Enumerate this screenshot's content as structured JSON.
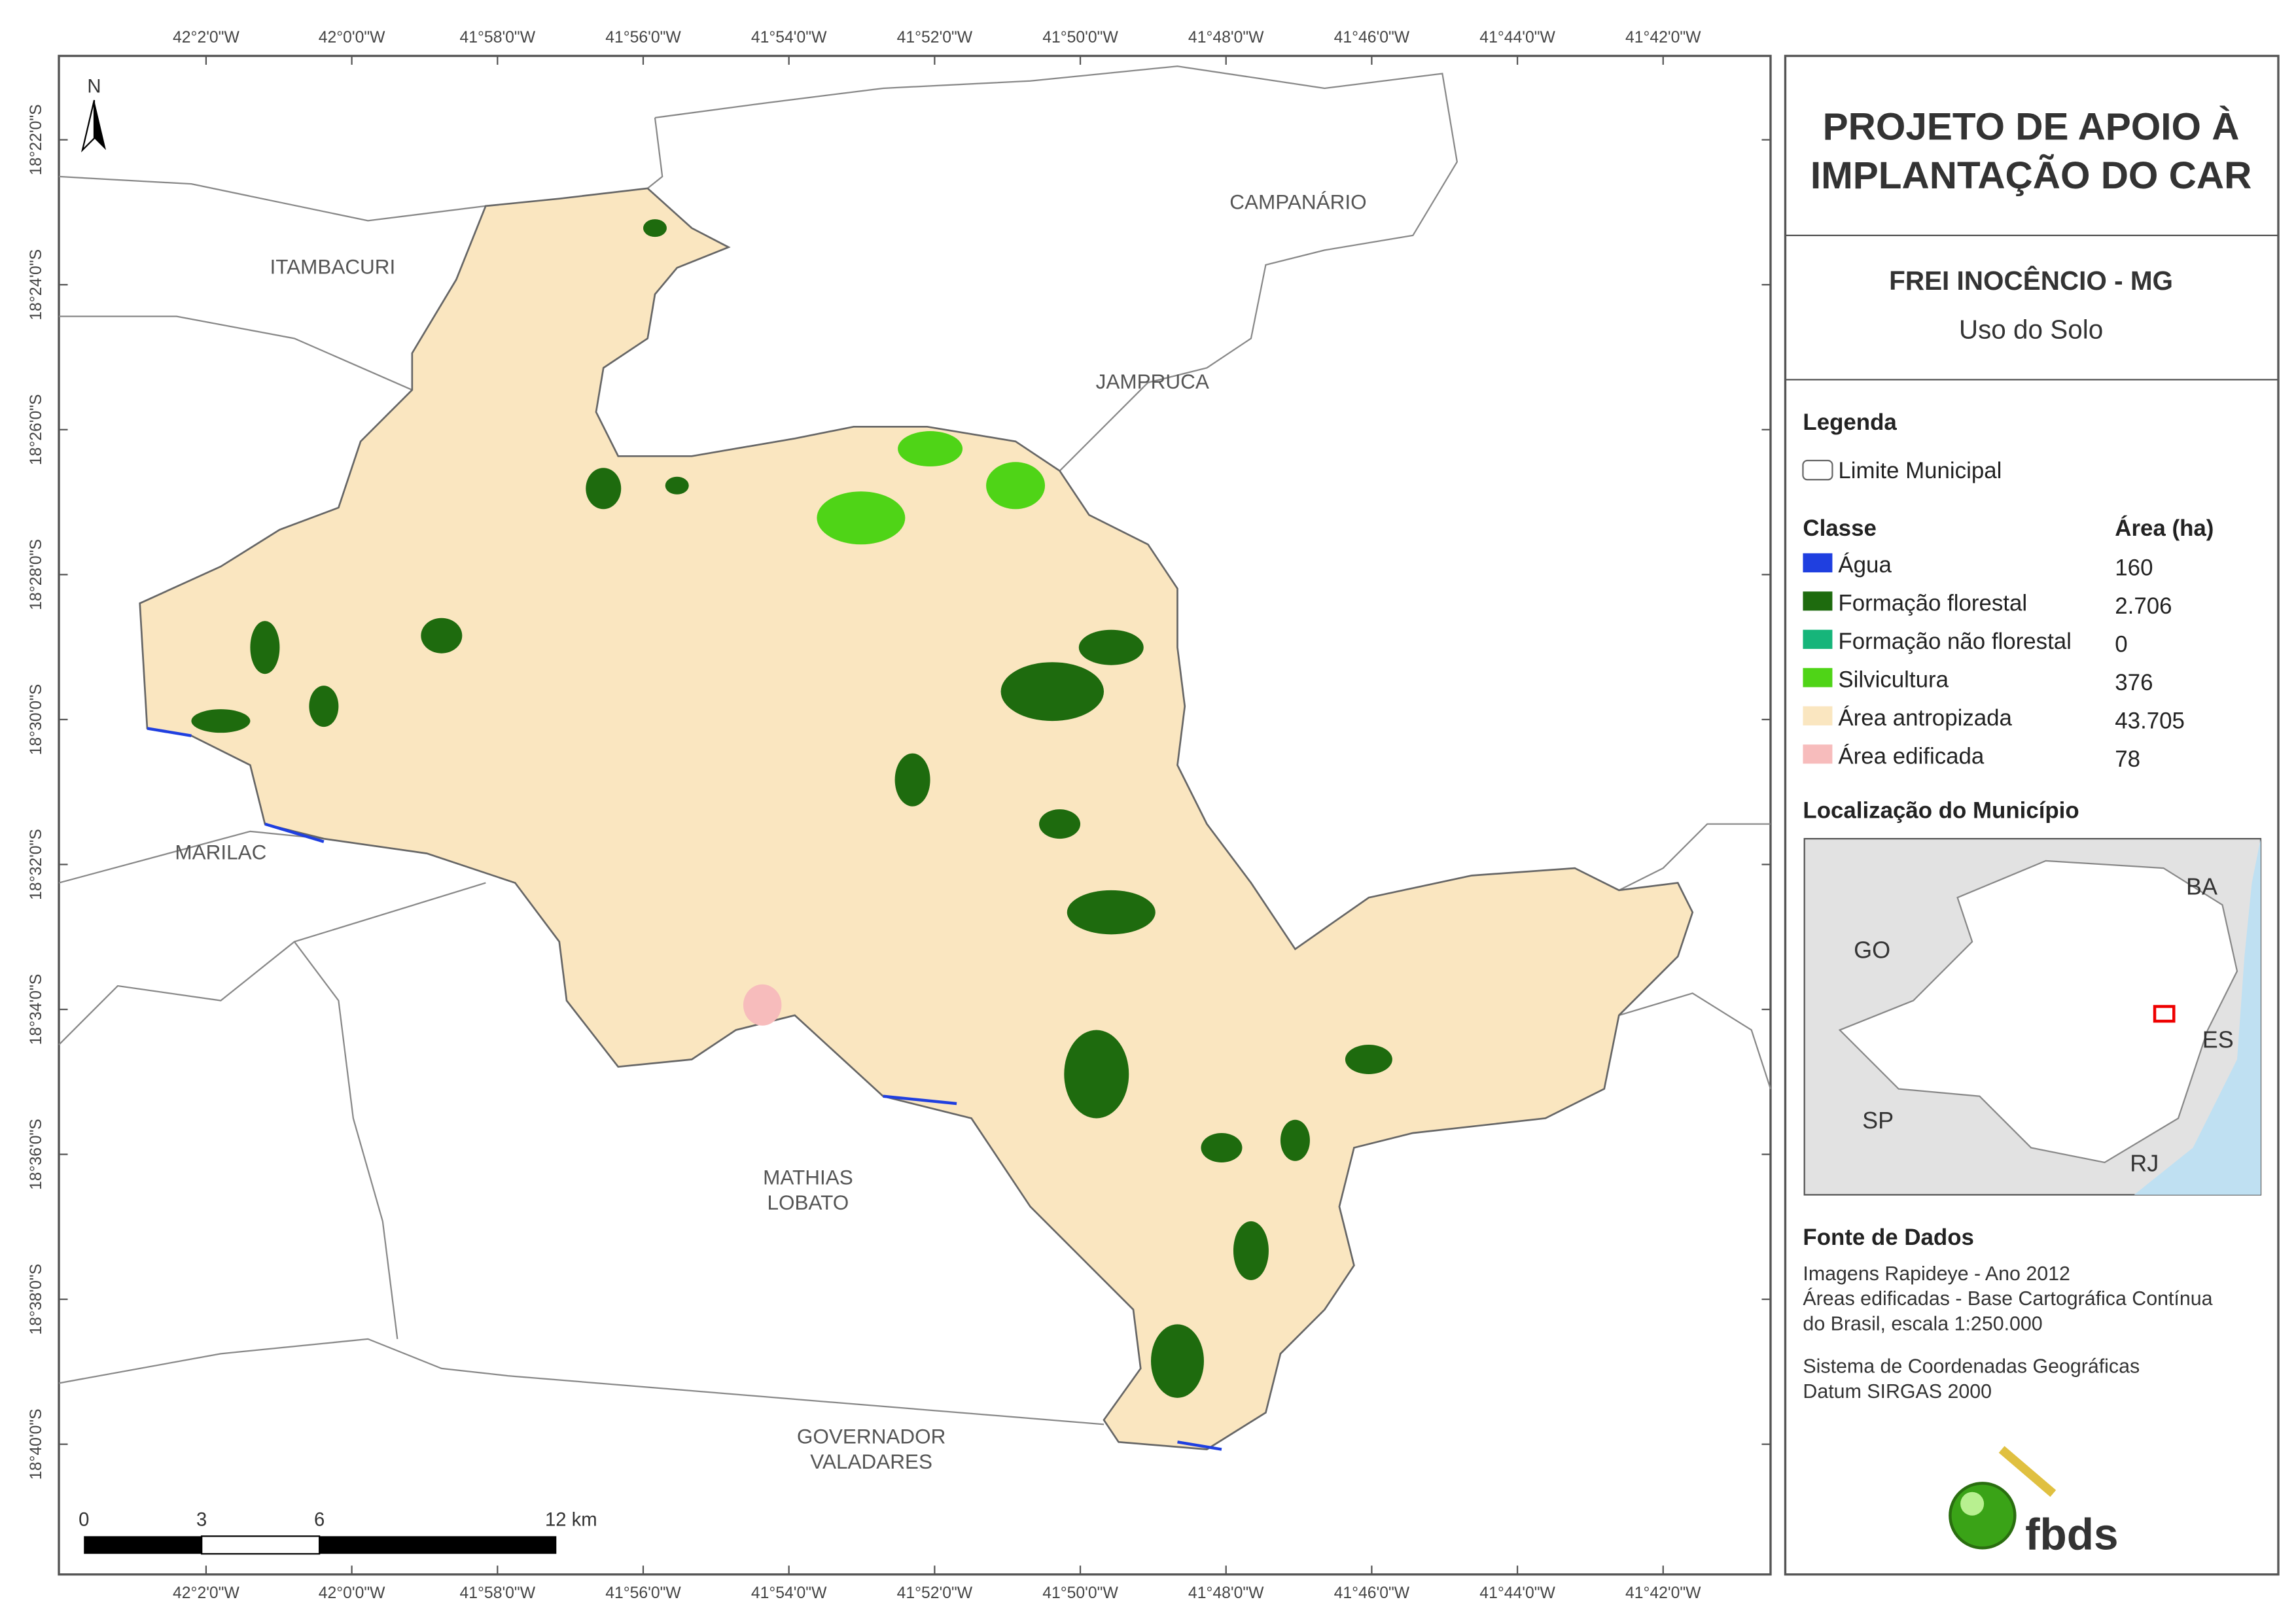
{
  "map": {
    "lon_labels": [
      "42°2'0\"W",
      "42°0'0\"W",
      "41°58'0\"W",
      "41°56'0\"W",
      "41°54'0\"W",
      "41°52'0\"W",
      "41°50'0\"W",
      "41°48'0\"W",
      "41°46'0\"W",
      "41°44'0\"W",
      "41°42'0\"W"
    ],
    "lat_labels": [
      "18°22'0\"S",
      "18°24'0\"S",
      "18°26'0\"S",
      "18°28'0\"S",
      "18°30'0\"S",
      "18°32'0\"S",
      "18°34'0\"S",
      "18°36'0\"S",
      "18°38'0\"S",
      "18°40'0\"S"
    ],
    "north": "N",
    "places": [
      [
        "ITAMBACURI"
      ],
      [
        "CAMPANÁRIO"
      ],
      [
        "JAMPRUCA"
      ],
      [
        "MARILAC"
      ],
      [
        "MATHIAS",
        "LOBATO"
      ],
      [
        "GOVERNADOR",
        "VALADARES"
      ]
    ],
    "scale_labels": [
      "0",
      "3",
      "6",
      "12 km"
    ]
  },
  "panel": {
    "title": [
      "PROJETO DE APOIO À",
      "IMPLANTAÇÃO DO CAR"
    ],
    "subtitle": "FREI INOCÊNCIO - MG",
    "theme": "Uso do Solo",
    "legend_title": "Legenda",
    "boundary": "Limite Municipal",
    "class_header": "Classe",
    "area_header": "Área (ha)",
    "classes": [
      {
        "name": "Água",
        "area": "160",
        "color": "#1f3fe0"
      },
      {
        "name": "Formação florestal",
        "area": "2.706",
        "color": "#1e6b0e"
      },
      {
        "name": "Formação não florestal",
        "area": "0",
        "color": "#16b57a"
      },
      {
        "name": "Silvicultura",
        "area": "376",
        "color": "#4fd417"
      },
      {
        "name": "Área antropizada",
        "area": "43.705",
        "color": "#fae6c0"
      },
      {
        "name": "Área edificada",
        "area": "78",
        "color": "#f7bcbc"
      }
    ],
    "location_title": "Localização do Município",
    "states": [
      "BA",
      "GO",
      "ES",
      "SP",
      "RJ"
    ],
    "sources_title": "Fonte de Dados",
    "sources": [
      [
        "Imagens Rapideye - Ano 2012",
        "Áreas edificadas - Base Cartográfica Contínua",
        "do Brasil, escala 1:250.000"
      ],
      [
        "Sistema de Coordenadas Geográficas",
        "Datum SIRGAS 2000"
      ]
    ],
    "logo": "fbds"
  }
}
